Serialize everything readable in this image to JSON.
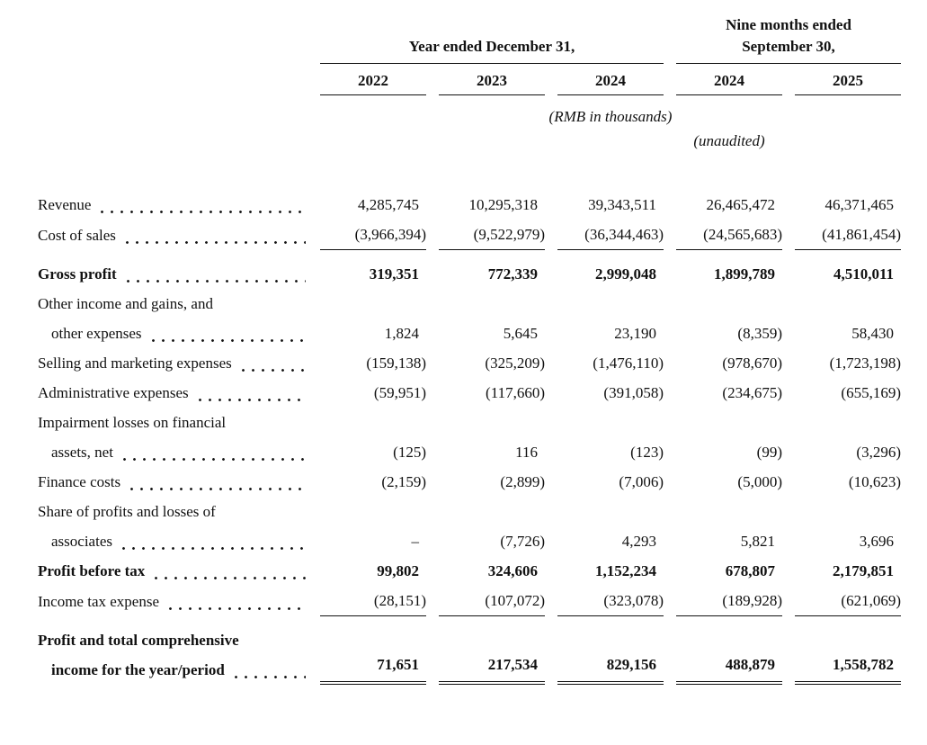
{
  "header": {
    "group_year": {
      "title": "Year ended December 31,",
      "cols": [
        "2022",
        "2023",
        "2024"
      ]
    },
    "group_nine_months": {
      "title_line1": "Nine months ended",
      "title_line2": "September 30,",
      "cols": [
        "2024",
        "2025"
      ]
    },
    "unit_note": "(RMB in thousands)",
    "unaudited_note": "(unaudited)"
  },
  "rows": [
    {
      "id": "revenue",
      "label_lines": [
        "Revenue"
      ],
      "bold": false,
      "underline": "none",
      "values": [
        "4,285,745",
        "10,295,318",
        "39,343,511",
        "26,465,472",
        "46,371,465"
      ]
    },
    {
      "id": "cost-of-sales",
      "label_lines": [
        "Cost of sales"
      ],
      "bold": false,
      "underline": "single",
      "values": [
        "(3,966,394)",
        "(9,522,979)",
        "(36,344,463)",
        "(24,565,683)",
        "(41,861,454)"
      ]
    },
    {
      "id": "gross-profit",
      "label_lines": [
        "Gross profit"
      ],
      "bold": true,
      "underline": "none",
      "values": [
        "319,351",
        "772,339",
        "2,999,048",
        "1,899,789",
        "4,510,011"
      ]
    },
    {
      "id": "other-income-and-expenses",
      "label_lines": [
        "Other income and gains, and",
        "other expenses"
      ],
      "bold": false,
      "underline": "none",
      "values": [
        "1,824",
        "5,645",
        "23,190",
        "(8,359)",
        "58,430"
      ]
    },
    {
      "id": "selling-marketing-expenses",
      "label_lines": [
        "Selling and marketing expenses"
      ],
      "bold": false,
      "underline": "none",
      "values": [
        "(159,138)",
        "(325,209)",
        "(1,476,110)",
        "(978,670)",
        "(1,723,198)"
      ]
    },
    {
      "id": "administrative-expenses",
      "label_lines": [
        "Administrative expenses"
      ],
      "bold": false,
      "underline": "none",
      "values": [
        "(59,951)",
        "(117,660)",
        "(391,058)",
        "(234,675)",
        "(655,169)"
      ]
    },
    {
      "id": "impairment-losses",
      "label_lines": [
        "Impairment losses on financial",
        "assets, net"
      ],
      "bold": false,
      "underline": "none",
      "values": [
        "(125)",
        "116",
        "(123)",
        "(99)",
        "(3,296)"
      ]
    },
    {
      "id": "finance-costs",
      "label_lines": [
        "Finance costs"
      ],
      "bold": false,
      "underline": "none",
      "values": [
        "(2,159)",
        "(2,899)",
        "(7,006)",
        "(5,000)",
        "(10,623)"
      ]
    },
    {
      "id": "share-of-associates",
      "label_lines": [
        "Share of profits and losses of",
        "associates"
      ],
      "bold": false,
      "underline": "none",
      "values": [
        "–",
        "(7,726)",
        "4,293",
        "5,821",
        "3,696"
      ]
    },
    {
      "id": "profit-before-tax",
      "label_lines": [
        "Profit before tax"
      ],
      "bold": true,
      "underline": "none",
      "values": [
        "99,802",
        "324,606",
        "1,152,234",
        "678,807",
        "2,179,851"
      ]
    },
    {
      "id": "income-tax-expense",
      "label_lines": [
        "Income tax expense"
      ],
      "bold": false,
      "underline": "single",
      "values": [
        "(28,151)",
        "(107,072)",
        "(323,078)",
        "(189,928)",
        "(621,069)"
      ]
    },
    {
      "id": "profit-total-comprehensive-income",
      "label_lines": [
        "Profit and total comprehensive",
        "income for the year/period"
      ],
      "bold": true,
      "underline": "double",
      "values": [
        "71,651",
        "217,534",
        "829,156",
        "488,879",
        "1,558,782"
      ]
    }
  ]
}
